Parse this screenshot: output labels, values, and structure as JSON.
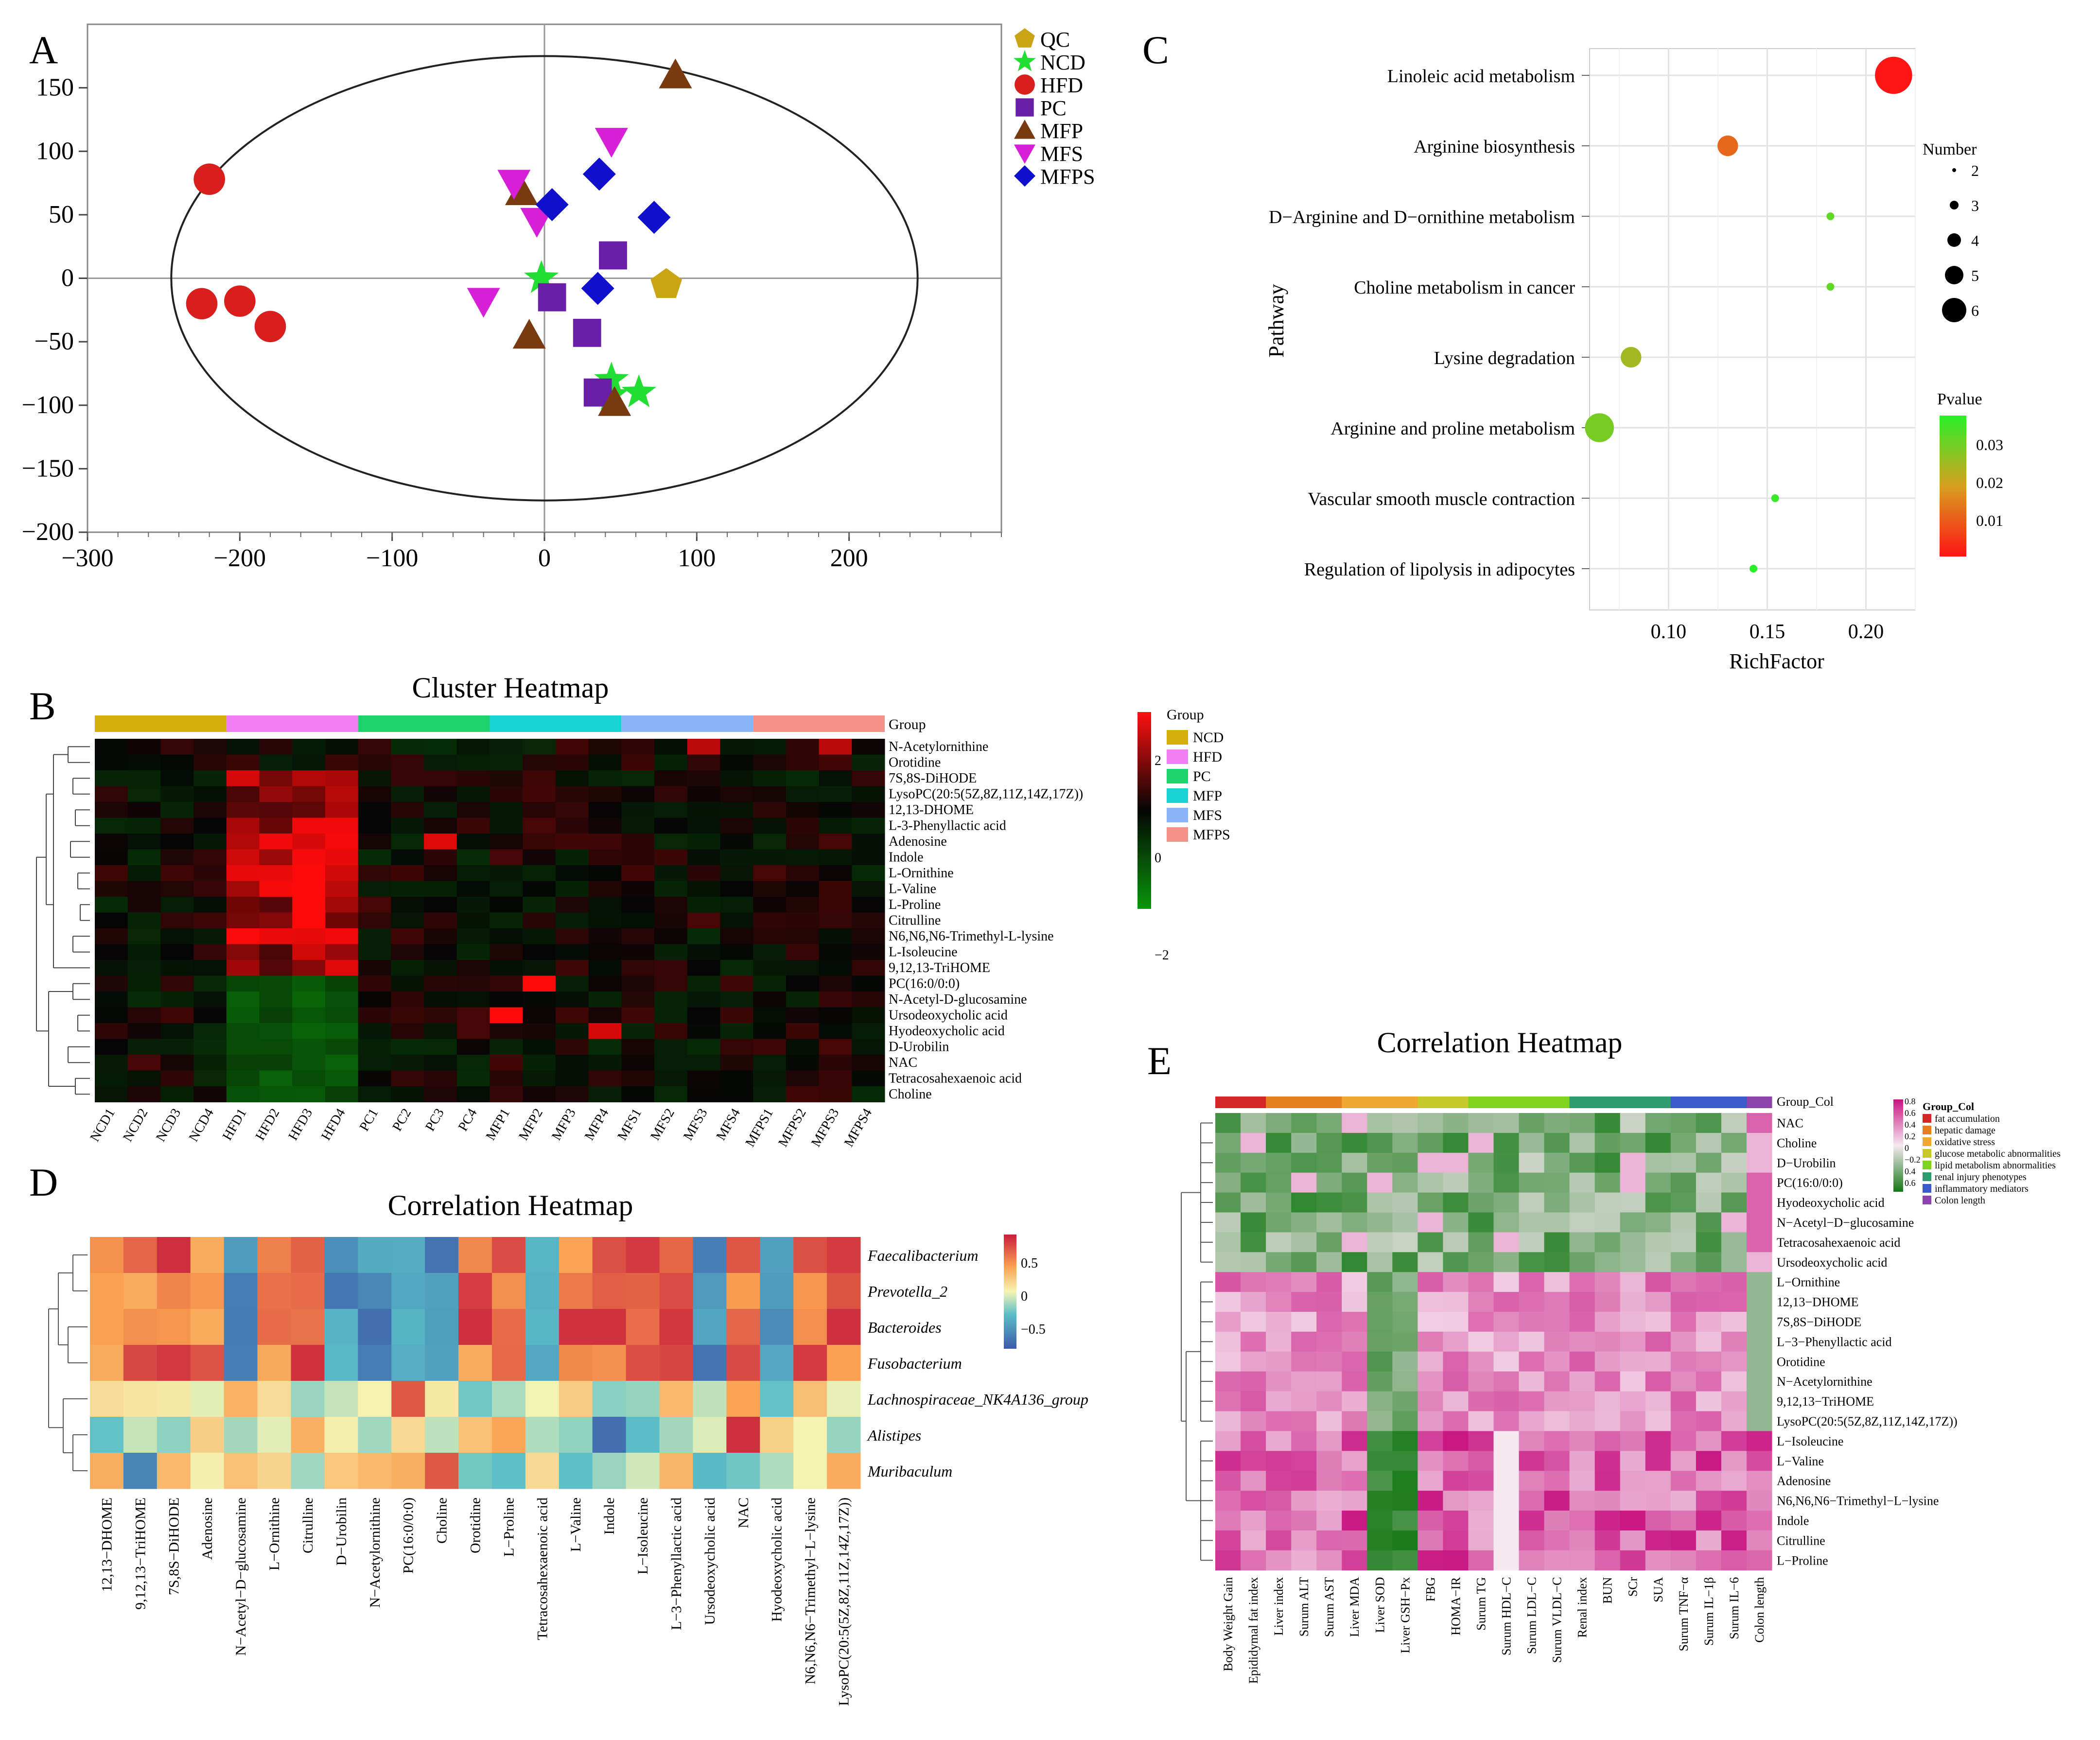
{
  "panels": {
    "a": "A",
    "b": "B",
    "c": "C",
    "d": "D",
    "e": "E"
  },
  "chart_data": [
    {
      "panel": "A",
      "type": "scatter",
      "xlim": [
        -300,
        300
      ],
      "ylim": [
        -200,
        200
      ],
      "x_ticks": [
        "−300",
        "−200",
        "−100",
        "0",
        "100",
        "200"
      ],
      "y_ticks": [
        "150",
        "100",
        "50",
        "0",
        "−50",
        "−100",
        "−150",
        "−200"
      ],
      "ellipse": {
        "cx": 0,
        "cy": 0,
        "rx": 245,
        "ry": 175
      },
      "legend": [
        "QC",
        "NCD",
        "HFD",
        "PC",
        "MFP",
        "MFS",
        "MFPS"
      ],
      "colors": {
        "QC": "#c9a516",
        "NCD": "#22dd33",
        "HFD": "#d91e1e",
        "PC": "#6a1fa8",
        "MFP": "#7a3a10",
        "MFS": "#d81fd8",
        "MFPS": "#1010cc"
      },
      "series": [
        {
          "name": "QC",
          "points": [
            [
              80,
              -5
            ]
          ]
        },
        {
          "name": "NCD",
          "points": [
            [
              -2,
              0
            ],
            [
              44,
              -80
            ],
            [
              62,
              -90
            ],
            [
              44,
              -92
            ]
          ]
        },
        {
          "name": "HFD",
          "points": [
            [
              -220,
              78
            ],
            [
              -225,
              -20
            ],
            [
              -200,
              -18
            ],
            [
              -180,
              -38
            ]
          ]
        },
        {
          "name": "PC",
          "points": [
            [
              45,
              18
            ],
            [
              5,
              -15
            ],
            [
              28,
              -43
            ],
            [
              35,
              -90
            ]
          ]
        },
        {
          "name": "MFP",
          "points": [
            [
              86,
              160
            ],
            [
              -15,
              68
            ],
            [
              -10,
              -45
            ],
            [
              46,
              -98
            ]
          ]
        },
        {
          "name": "MFS",
          "points": [
            [
              44,
              108
            ],
            [
              -20,
              75
            ],
            [
              -5,
              45
            ],
            [
              -40,
              -18
            ]
          ]
        },
        {
          "name": "MFPS",
          "points": [
            [
              36,
              82
            ],
            [
              5,
              58
            ],
            [
              72,
              48
            ],
            [
              35,
              -8
            ]
          ]
        }
      ]
    },
    {
      "panel": "B",
      "type": "heatmap",
      "title": "Cluster Heatmap",
      "group_label": "Group",
      "columns": [
        "NCD1",
        "NCD2",
        "NCD3",
        "NCD4",
        "HFD1",
        "HFD2",
        "HFD3",
        "HFD4",
        "PC1",
        "PC2",
        "PC3",
        "PC4",
        "MFP1",
        "MFP2",
        "MFP3",
        "MFP4",
        "MFS1",
        "MFS2",
        "MFS3",
        "MFS4",
        "MFPS1",
        "MFPS2",
        "MFPS3",
        "MFPS4"
      ],
      "rows": [
        "N-Acetylornithine",
        "Orotidine",
        "7S,8S-DiHODE",
        "LysoPC(20:5(5Z,8Z,11Z,14Z,17Z))",
        "12,13-DHOME",
        "L-3-Phenyllactic acid",
        "Adenosine",
        "Indole",
        "L-Ornithine",
        "L-Valine",
        "L-Proline",
        "Citrulline",
        "N6,N6,N6-Trimethyl-L-lysine",
        "L-Isoleucine",
        "9,12,13-TriHOME",
        "PC(16:0/0:0)",
        "N-Acetyl-D-glucosamine",
        "Ursodeoxycholic acid",
        "Hyodeoxycholic acid",
        "D-Urobilin",
        "NAC",
        "Tetracosahexaenoic acid",
        "Choline"
      ],
      "legend_groups": [
        "NCD",
        "HFD",
        "PC",
        "MFP",
        "MFS",
        "MFPS"
      ],
      "group_colors": [
        "#d4b00a",
        "#f07ef0",
        "#1ed36e",
        "#18d3d3",
        "#8ab4f8",
        "#f4908a"
      ],
      "scale_ticks": [
        "2",
        "0",
        "−2"
      ],
      "range": [
        -3,
        3
      ]
    },
    {
      "panel": "C",
      "type": "scatter",
      "ylabel": "Pathway",
      "xlabel": "RichFactor",
      "xlim": [
        0.06,
        0.225
      ],
      "x_ticks": [
        "0.10",
        "0.15",
        "0.20"
      ],
      "pathways": [
        "Linoleic acid metabolism",
        "Arginine biosynthesis",
        "D−Arginine and D−ornithine metabolism",
        "Choline metabolism in cancer",
        "Lysine degradation",
        "Arginine and proline metabolism",
        "Vascular smooth muscle contraction",
        "Regulation of lipolysis in adipocytes"
      ],
      "rich_factor": [
        0.214,
        0.13,
        0.182,
        0.182,
        0.081,
        0.065,
        0.154,
        0.143
      ],
      "number": [
        6,
        4,
        2,
        2,
        4,
        5,
        2,
        2
      ],
      "pvalue": [
        0.0001,
        0.012,
        0.034,
        0.034,
        0.026,
        0.031,
        0.038,
        0.04
      ],
      "size_legend_title": "Number",
      "size_legend": [
        "2",
        "3",
        "4",
        "5",
        "6"
      ],
      "color_legend_title": "Pvalue",
      "color_ticks": [
        "0.03",
        "0.02",
        "0.01"
      ]
    },
    {
      "panel": "D",
      "type": "heatmap",
      "title": "Correlation Heatmap",
      "rows": [
        "Faecalibacterium",
        "Prevotella_2",
        "Bacteroides",
        "Fusobacterium",
        "Lachnospiraceae_NK4A136_group",
        "Alistipes",
        "Muribaculum"
      ],
      "columns": [
        "12,13−DHOME",
        "9,12,13−TriHOME",
        "7S,8S−DiHODE",
        "Adenosine",
        "N−Acetyl−D−glucosamine",
        "L−Ornithine",
        "Citrulline",
        "D−Urobilin",
        "N−Acetylornithine",
        "PC(16:0/0:0)",
        "Choline",
        "Orotidine",
        "L−Proline",
        "Tetracosahexaenoic acid",
        "L−Valine",
        "Indole",
        "L−Isoleucine",
        "L−3−Phenyllactic acid",
        "Ursodeoxycholic acid",
        "NAC",
        "Hyodeoxycholic acid",
        "N6,N6,N6−Trimethyl−L−lysine",
        "LysoPC(20:5(5Z,8Z,11Z,14Z,17Z))"
      ],
      "scale_ticks": [
        "0.5",
        "0",
        "−0.5"
      ],
      "range": [
        -0.8,
        0.8
      ]
    },
    {
      "panel": "E",
      "type": "heatmap",
      "title": "Correlation Heatmap",
      "group_label": "Group_Col",
      "rows": [
        "NAC",
        "Choline",
        "D−Urobilin",
        "PC(16:0/0:0)",
        "Hyodeoxycholic acid",
        "N−Acetyl−D−glucosamine",
        "Tetracosahexaenoic acid",
        "Ursodeoxycholic acid",
        "L−Ornithine",
        "12,13−DHOME",
        "7S,8S−DiHODE",
        "L−3−Phenyllactic acid",
        "Orotidine",
        "N−Acetylornithine",
        "9,12,13−TriHOME",
        "LysoPC(20:5(5Z,8Z,11Z,14Z,17Z))",
        "L−Isoleucine",
        "L−Valine",
        "Adenosine",
        "N6,N6,N6−Trimethyl−L−lysine",
        "Indole",
        "Citrulline",
        "L−Proline"
      ],
      "columns": [
        "Body Weight Gain",
        "Epididymal fat index",
        "Liver index",
        "Surum ALT",
        "Surum AST",
        "Liver MDA",
        "Liver SOD",
        "Liver GSH−Px",
        "FBG",
        "HOMA−IR",
        "Surum TG",
        "Surum HDL−C",
        "Surum LDL−C",
        "Surum VLDL−C",
        "Renal index",
        "BUN",
        "SCr",
        "SUA",
        "Surum TNF−α",
        "Surum IL−1β",
        "Surum IL−6",
        "Colon length"
      ],
      "col_group": [
        0,
        0,
        1,
        1,
        1,
        2,
        2,
        2,
        3,
        3,
        4,
        4,
        4,
        4,
        5,
        5,
        5,
        5,
        6,
        6,
        6,
        7
      ],
      "group_legend": [
        "fat accumulation",
        "hepatic damage",
        "oxidative stress",
        "glucose metabolic abnormalities",
        "lipid metabolism abnormalities",
        "renal injury phenotypes",
        "inflammatory mediators",
        "Colon length"
      ],
      "group_colors": [
        "#d62728",
        "#e67e22",
        "#f0a830",
        "#c8c82a",
        "#7ed321",
        "#2e9c6e",
        "#3a5bc8",
        "#8e44ad"
      ],
      "scale_ticks": [
        "0.8",
        "0.6",
        "0.4",
        "0.2",
        "0",
        "−0.2",
        "0.4",
        "0.6"
      ],
      "range": [
        -0.8,
        0.8
      ]
    }
  ]
}
